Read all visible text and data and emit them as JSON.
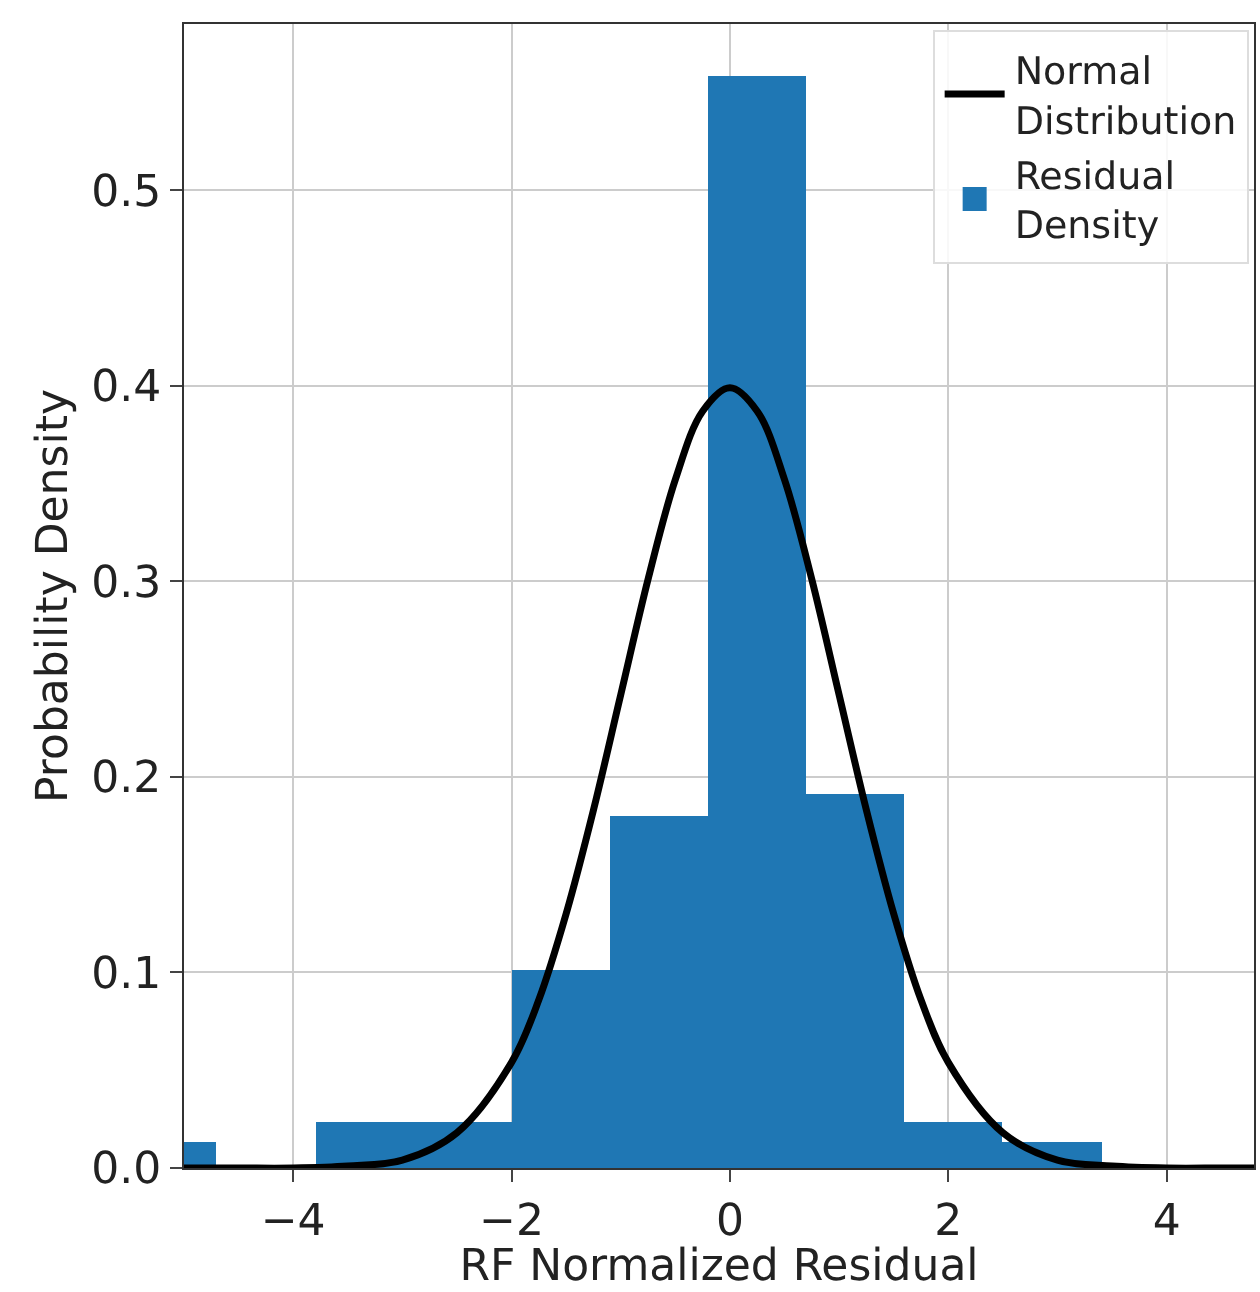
{
  "chart_data": {
    "type": "histogram",
    "xlabel": "RF Normalized Residual",
    "ylabel": "Probability Density",
    "series": [
      {
        "name": "Normal Distribution",
        "type": "line",
        "color": "#000000",
        "x": [
          -5,
          -4.5,
          -4,
          -3.5,
          -3,
          -2.5,
          -2,
          -1.75,
          -1.5,
          -1.25,
          -1,
          -0.75,
          -0.5,
          -0.25,
          0,
          0.25,
          0.5,
          0.75,
          1,
          1.25,
          1.5,
          1.75,
          2,
          2.5,
          3,
          3.5,
          4,
          4.5,
          4.8
        ],
        "values": [
          0.0,
          0.0,
          0.0,
          0.001,
          0.004,
          0.018,
          0.054,
          0.086,
          0.13,
          0.183,
          0.242,
          0.301,
          0.352,
          0.387,
          0.399,
          0.387,
          0.352,
          0.301,
          0.242,
          0.183,
          0.13,
          0.086,
          0.054,
          0.018,
          0.004,
          0.001,
          0.0,
          0.0,
          0.0
        ]
      },
      {
        "name": "Residual Density",
        "color": "#1f77b4",
        "bins": [
          -5.6,
          -4.7,
          -3.8,
          -2.9,
          -2.0,
          -1.1,
          -0.2,
          0.7,
          1.6,
          2.5,
          3.4
        ],
        "values": [
          0.013,
          0,
          0.024,
          0.024,
          0.101,
          0.18,
          0.558,
          0.191,
          0.024,
          0.013
        ]
      }
    ],
    "xlim": [
      -5,
      4.8
    ],
    "ylim": [
      0,
      0.585
    ],
    "xticks": [
      {
        "value": -4,
        "label": "−4"
      },
      {
        "value": -2,
        "label": "−2"
      },
      0,
      2,
      4
    ],
    "yticks": [
      {
        "value": 0,
        "label": "0.0"
      },
      {
        "value": 0.1,
        "label": "0.1"
      },
      {
        "value": 0.2,
        "label": "0.2"
      },
      {
        "value": 0.3,
        "label": "0.3"
      },
      {
        "value": 0.4,
        "label": "0.4"
      },
      {
        "value": 0.5,
        "label": "0.5"
      }
    ],
    "grid": true,
    "legend": "top right",
    "line_style": "solid",
    "marker": "none"
  }
}
